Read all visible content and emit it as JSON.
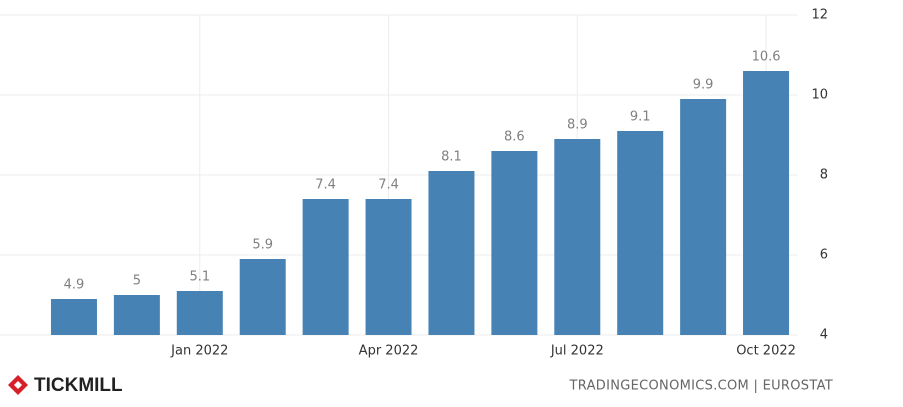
{
  "chart_data": {
    "type": "bar",
    "categories": [
      null,
      null,
      "Jan 2022",
      null,
      null,
      "Apr 2022",
      null,
      null,
      "Jul 2022",
      null,
      null,
      "Oct 2022"
    ],
    "values": [
      4.9,
      5,
      5.1,
      5.9,
      7.4,
      7.4,
      8.1,
      8.6,
      8.9,
      9.1,
      9.9,
      10.6
    ],
    "color": "#4682b4",
    "ylim": [
      4,
      12
    ],
    "yticks": [
      4,
      6,
      8,
      10,
      12
    ],
    "grid": true,
    "source": "TRADINGECONOMICS.COM | EUROSTAT"
  },
  "brand": "TICKMILL"
}
